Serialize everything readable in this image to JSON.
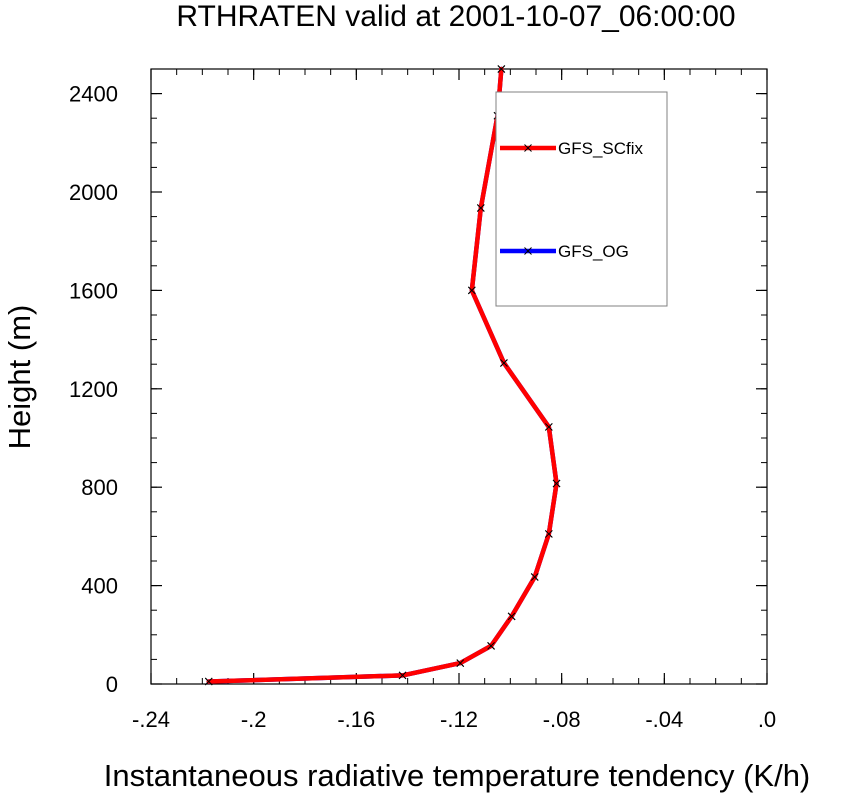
{
  "chart_data": {
    "type": "line",
    "title": "RTHRATEN valid at 2001-10-07_06:00:00",
    "xlabel": "Instantaneous radiative temperature tendency (K/h)",
    "ylabel": "Height (m)",
    "xlim": [
      -0.24,
      0.0
    ],
    "ylim": [
      0,
      2500
    ],
    "x_ticks": [
      {
        "value": -0.24,
        "label": "-.24"
      },
      {
        "value": -0.2,
        "label": "-.2"
      },
      {
        "value": -0.16,
        "label": "-.16"
      },
      {
        "value": -0.12,
        "label": "-.12"
      },
      {
        "value": -0.08,
        "label": "-.08"
      },
      {
        "value": -0.04,
        "label": "-.04"
      },
      {
        "value": 0.0,
        "label": ".0"
      }
    ],
    "y_ticks": [
      {
        "value": 0,
        "label": "0"
      },
      {
        "value": 400,
        "label": "400"
      },
      {
        "value": 800,
        "label": "800"
      },
      {
        "value": 1200,
        "label": "1200"
      },
      {
        "value": 1600,
        "label": "1600"
      },
      {
        "value": 2000,
        "label": "2000"
      },
      {
        "value": 2400,
        "label": "2400"
      }
    ],
    "grid": false,
    "legend_position": "top-right",
    "series": [
      {
        "name": "GFS_OG",
        "color": "#0000ff",
        "marker": "x",
        "points": [
          {
            "x": -0.2175,
            "y": 10
          },
          {
            "x": -0.142,
            "y": 35
          },
          {
            "x": -0.1195,
            "y": 85
          },
          {
            "x": -0.1075,
            "y": 155
          },
          {
            "x": -0.0995,
            "y": 275
          },
          {
            "x": -0.0905,
            "y": 435
          },
          {
            "x": -0.085,
            "y": 610
          },
          {
            "x": -0.082,
            "y": 815
          },
          {
            "x": -0.085,
            "y": 1045
          },
          {
            "x": -0.1025,
            "y": 1305
          },
          {
            "x": -0.115,
            "y": 1600
          },
          {
            "x": -0.1115,
            "y": 1935
          },
          {
            "x": -0.105,
            "y": 2310
          },
          {
            "x": -0.1035,
            "y": 2500
          }
        ]
      },
      {
        "name": "GFS_SCfix",
        "color": "#ff0000",
        "marker": "x",
        "points": [
          {
            "x": -0.2175,
            "y": 10
          },
          {
            "x": -0.142,
            "y": 35
          },
          {
            "x": -0.1195,
            "y": 85
          },
          {
            "x": -0.1075,
            "y": 155
          },
          {
            "x": -0.0995,
            "y": 275
          },
          {
            "x": -0.0905,
            "y": 435
          },
          {
            "x": -0.085,
            "y": 610
          },
          {
            "x": -0.082,
            "y": 815
          },
          {
            "x": -0.085,
            "y": 1045
          },
          {
            "x": -0.1025,
            "y": 1305
          },
          {
            "x": -0.115,
            "y": 1600
          },
          {
            "x": -0.1115,
            "y": 1935
          },
          {
            "x": -0.105,
            "y": 2310
          },
          {
            "x": -0.1035,
            "y": 2500
          }
        ]
      }
    ],
    "legend_order": [
      "GFS_SCfix",
      "GFS_OG"
    ]
  }
}
